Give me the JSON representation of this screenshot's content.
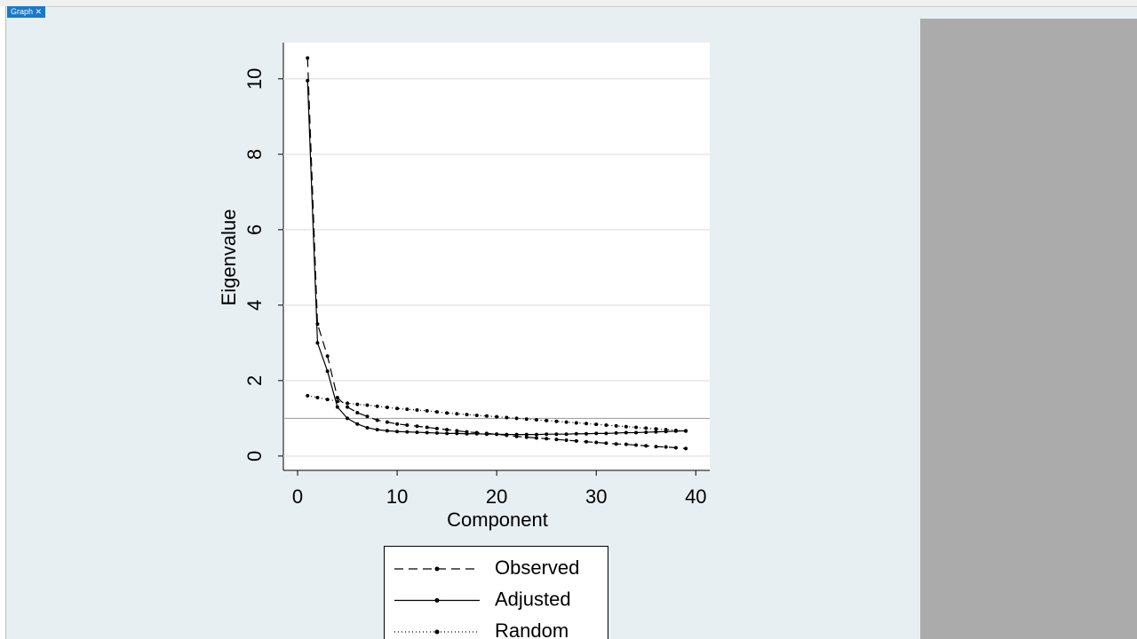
{
  "window": {
    "tab": "Graph"
  },
  "chart_data": {
    "type": "line",
    "x_label": "Component",
    "y_label": "Eigenvalue",
    "x": [
      1,
      2,
      3,
      4,
      5,
      6,
      7,
      8,
      9,
      10,
      11,
      12,
      13,
      14,
      15,
      16,
      17,
      18,
      19,
      20,
      21,
      22,
      23,
      24,
      25,
      26,
      27,
      28,
      29,
      30,
      31,
      32,
      33,
      34,
      35,
      36,
      37,
      38,
      39
    ],
    "series": [
      {
        "name": "Observed",
        "color": "#000000",
        "line_style": "dashed",
        "values": [
          10.55,
          3.5,
          2.65,
          1.55,
          1.3,
          1.15,
          1.05,
          0.95,
          0.9,
          0.85,
          0.82,
          0.79,
          0.76,
          0.73,
          0.7,
          0.67,
          0.64,
          0.62,
          0.6,
          0.58,
          0.55,
          0.52,
          0.5,
          0.48,
          0.46,
          0.44,
          0.42,
          0.4,
          0.38,
          0.36,
          0.34,
          0.32,
          0.31,
          0.29,
          0.27,
          0.25,
          0.24,
          0.22,
          0.2
        ]
      },
      {
        "name": "Adjusted",
        "color": "#000000",
        "line_style": "solid",
        "values": [
          9.95,
          3.0,
          2.25,
          1.3,
          1.0,
          0.85,
          0.75,
          0.7,
          0.67,
          0.65,
          0.64,
          0.63,
          0.62,
          0.61,
          0.6,
          0.6,
          0.59,
          0.59,
          0.58,
          0.58,
          0.57,
          0.57,
          0.57,
          0.57,
          0.58,
          0.58,
          0.58,
          0.59,
          0.59,
          0.6,
          0.6,
          0.61,
          0.62,
          0.62,
          0.63,
          0.64,
          0.65,
          0.66,
          0.67
        ]
      },
      {
        "name": "Random",
        "color": "#000000",
        "line_style": "dotted",
        "values": [
          1.6,
          1.55,
          1.5,
          1.45,
          1.4,
          1.37,
          1.35,
          1.32,
          1.29,
          1.26,
          1.24,
          1.22,
          1.2,
          1.17,
          1.14,
          1.12,
          1.1,
          1.08,
          1.06,
          1.04,
          1.02,
          1.0,
          0.98,
          0.96,
          0.94,
          0.92,
          0.9,
          0.88,
          0.86,
          0.84,
          0.82,
          0.8,
          0.78,
          0.76,
          0.74,
          0.72,
          0.7,
          0.68,
          0.66
        ]
      }
    ],
    "reference_line": 1,
    "xlim": [
      -1.43,
      41.4
    ],
    "ylim": [
      -0.38,
      10.96
    ],
    "xticks": [
      0,
      10,
      20,
      30,
      40
    ],
    "yticks": [
      0,
      2,
      4,
      6,
      8,
      10
    ],
    "grid": true
  }
}
